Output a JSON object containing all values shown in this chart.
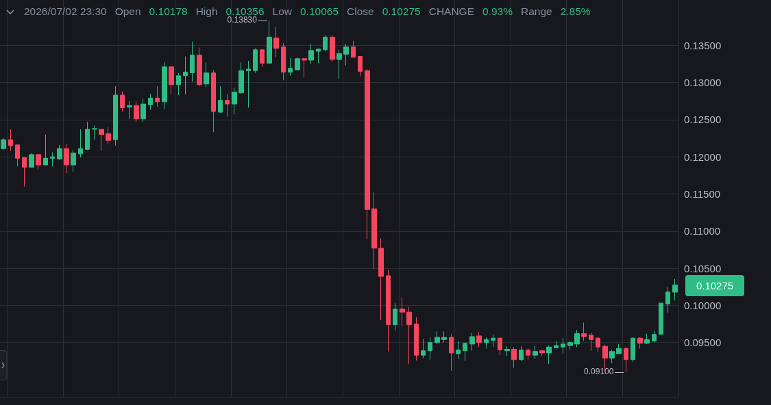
{
  "chart_data": {
    "type": "candlestick",
    "categories": [
      null,
      null,
      null,
      null,
      null,
      null,
      null,
      null,
      null,
      null,
      null,
      null,
      null,
      null,
      null,
      null,
      null,
      null,
      null,
      null,
      null,
      null,
      null,
      null,
      null,
      null,
      null,
      null,
      null,
      null,
      null,
      null,
      null,
      null,
      null,
      null,
      null,
      null,
      null,
      null,
      null,
      null,
      null,
      null,
      null,
      null,
      null,
      null,
      null,
      null,
      null,
      null,
      null,
      null,
      null,
      null,
      null,
      null,
      null,
      null,
      null,
      null,
      null,
      null,
      null,
      null,
      null,
      null,
      null,
      null,
      null,
      null,
      null,
      null,
      null,
      null,
      null,
      null,
      null,
      null,
      null,
      null,
      null,
      null,
      null,
      null,
      null,
      null,
      null,
      null,
      null,
      null,
      null,
      null,
      null,
      null,
      null
    ],
    "ohlc": [
      [
        0.1211,
        0.1225,
        0.1209,
        0.1223
      ],
      [
        0.1223,
        0.1237,
        0.1208,
        0.1215
      ],
      [
        0.1216,
        0.1216,
        0.1187,
        0.1198
      ],
      [
        0.1199,
        0.1199,
        0.116,
        0.1186
      ],
      [
        0.1186,
        0.1205,
        0.1186,
        0.1203
      ],
      [
        0.1203,
        0.1204,
        0.1183,
        0.1189
      ],
      [
        0.1189,
        0.123,
        0.1189,
        0.1198
      ],
      [
        0.1198,
        0.1206,
        0.1187,
        0.12
      ],
      [
        0.1197,
        0.1216,
        0.1196,
        0.1211
      ],
      [
        0.1211,
        0.1217,
        0.1178,
        0.1189
      ],
      [
        0.1189,
        0.1209,
        0.118,
        0.1205
      ],
      [
        0.1204,
        0.1237,
        0.1199,
        0.1211
      ],
      [
        0.121,
        0.1247,
        0.1209,
        0.1237
      ],
      [
        0.1237,
        0.1242,
        0.1223,
        0.1238
      ],
      [
        0.1237,
        0.1237,
        0.1208,
        0.123
      ],
      [
        0.1231,
        0.124,
        0.1217,
        0.1222
      ],
      [
        0.1223,
        0.1295,
        0.1215,
        0.1283
      ],
      [
        0.1283,
        0.1288,
        0.1261,
        0.1266
      ],
      [
        0.1267,
        0.1275,
        0.1251,
        0.1269
      ],
      [
        0.1269,
        0.1275,
        0.1247,
        0.1251
      ],
      [
        0.1251,
        0.1278,
        0.1247,
        0.1271
      ],
      [
        0.127,
        0.1285,
        0.1263,
        0.1279
      ],
      [
        0.1279,
        0.1295,
        0.1267,
        0.1274
      ],
      [
        0.1274,
        0.1327,
        0.1264,
        0.1321
      ],
      [
        0.1321,
        0.1322,
        0.1284,
        0.1297
      ],
      [
        0.1297,
        0.1313,
        0.1283,
        0.1309
      ],
      [
        0.1309,
        0.1335,
        0.1284,
        0.1314
      ],
      [
        0.1313,
        0.1355,
        0.1301,
        0.1337
      ],
      [
        0.1337,
        0.1347,
        0.1295,
        0.1297
      ],
      [
        0.1298,
        0.1327,
        0.1294,
        0.1313
      ],
      [
        0.1313,
        0.1317,
        0.1233,
        0.1261
      ],
      [
        0.126,
        0.1295,
        0.1259,
        0.1276
      ],
      [
        0.1276,
        0.1284,
        0.1254,
        0.1271
      ],
      [
        0.1271,
        0.1293,
        0.1257,
        0.1287
      ],
      [
        0.1286,
        0.1327,
        0.1285,
        0.1316
      ],
      [
        0.1316,
        0.1329,
        0.1266,
        0.1318
      ],
      [
        0.1316,
        0.1346,
        0.1313,
        0.1344
      ],
      [
        0.1344,
        0.1344,
        0.1321,
        0.1326
      ],
      [
        0.1326,
        0.1383,
        0.1326,
        0.1361
      ],
      [
        0.136,
        0.1375,
        0.1334,
        0.1346
      ],
      [
        0.1348,
        0.1353,
        0.1303,
        0.1314
      ],
      [
        0.1314,
        0.1333,
        0.1309,
        0.1319
      ],
      [
        0.1317,
        0.1334,
        0.1316,
        0.1332
      ],
      [
        0.1332,
        0.1333,
        0.1307,
        0.133
      ],
      [
        0.133,
        0.1352,
        0.1325,
        0.1343
      ],
      [
        0.1342,
        0.1345,
        0.1326,
        0.1345
      ],
      [
        0.1344,
        0.1363,
        0.1342,
        0.1361
      ],
      [
        0.1361,
        0.1363,
        0.1328,
        0.1331
      ],
      [
        0.1331,
        0.1344,
        0.1305,
        0.1339
      ],
      [
        0.1338,
        0.1352,
        0.1323,
        0.1348
      ],
      [
        0.1348,
        0.1356,
        0.1334,
        0.1334
      ],
      [
        0.1335,
        0.1335,
        0.1308,
        0.1315
      ],
      [
        0.1316,
        0.1318,
        0.1089,
        0.1129
      ],
      [
        0.113,
        0.1152,
        0.1049,
        0.1077
      ],
      [
        0.1077,
        0.109,
        0.098,
        0.1039
      ],
      [
        0.104,
        0.1048,
        0.0938,
        0.0974
      ],
      [
        0.0974,
        0.1003,
        0.0966,
        0.0995
      ],
      [
        0.0995,
        0.1011,
        0.0972,
        0.0991
      ],
      [
        0.0991,
        0.0998,
        0.0921,
        0.0974
      ],
      [
        0.0975,
        0.0984,
        0.0926,
        0.0933
      ],
      [
        0.0933,
        0.0955,
        0.0929,
        0.0939
      ],
      [
        0.0939,
        0.0957,
        0.0927,
        0.095
      ],
      [
        0.095,
        0.0965,
        0.0948,
        0.0957
      ],
      [
        0.0954,
        0.0965,
        0.095,
        0.0957
      ],
      [
        0.0957,
        0.0962,
        0.0912,
        0.0936
      ],
      [
        0.0935,
        0.0952,
        0.0928,
        0.094
      ],
      [
        0.0939,
        0.095,
        0.0925,
        0.0949
      ],
      [
        0.0948,
        0.0963,
        0.0939,
        0.0958
      ],
      [
        0.0959,
        0.0964,
        0.0944,
        0.095
      ],
      [
        0.095,
        0.0957,
        0.0942,
        0.0954
      ],
      [
        0.0953,
        0.0961,
        0.0944,
        0.0956
      ],
      [
        0.0956,
        0.0957,
        0.0933,
        0.094
      ],
      [
        0.0939,
        0.0945,
        0.0932,
        0.0941
      ],
      [
        0.0941,
        0.0944,
        0.0916,
        0.0927
      ],
      [
        0.0927,
        0.0945,
        0.0925,
        0.094
      ],
      [
        0.094,
        0.0942,
        0.0927,
        0.0933
      ],
      [
        0.0933,
        0.0946,
        0.0928,
        0.0938
      ],
      [
        0.0939,
        0.094,
        0.0932,
        0.0936
      ],
      [
        0.0936,
        0.0946,
        0.0921,
        0.0944
      ],
      [
        0.0943,
        0.0952,
        0.0942,
        0.0946
      ],
      [
        0.0944,
        0.0956,
        0.0935,
        0.0948
      ],
      [
        0.0946,
        0.0952,
        0.094,
        0.095
      ],
      [
        0.0948,
        0.0967,
        0.0944,
        0.0962
      ],
      [
        0.0962,
        0.0977,
        0.0952,
        0.0958
      ],
      [
        0.096,
        0.0963,
        0.0939,
        0.0954
      ],
      [
        0.0956,
        0.0957,
        0.0938,
        0.0944
      ],
      [
        0.0945,
        0.0947,
        0.0912,
        0.0929
      ],
      [
        0.0929,
        0.094,
        0.0922,
        0.0938
      ],
      [
        0.0935,
        0.0948,
        0.0935,
        0.0942
      ],
      [
        0.0942,
        0.0944,
        0.091,
        0.0927
      ],
      [
        0.0927,
        0.0957,
        0.0924,
        0.0956
      ],
      [
        0.0956,
        0.0957,
        0.0942,
        0.0949
      ],
      [
        0.0949,
        0.0962,
        0.0948,
        0.0954
      ],
      [
        0.0952,
        0.0966,
        0.095,
        0.0961
      ],
      [
        0.0961,
        0.1004,
        0.0961,
        0.1003
      ],
      [
        0.1002,
        0.1025,
        0.099,
        0.1018
      ],
      [
        0.10178,
        0.10356,
        0.10065,
        0.10275
      ]
    ],
    "colors": [
      "#2ebd85",
      "#f6465d",
      "#f6465d",
      "#f6465d",
      "#2ebd85",
      "#f6465d",
      "#2ebd85",
      "#2ebd85",
      "#2ebd85",
      "#f6465d",
      "#2ebd85",
      "#2ebd85",
      "#2ebd85",
      "#2ebd85",
      "#f6465d",
      "#f6465d",
      "#2ebd85",
      "#f6465d",
      "#2ebd85",
      "#f6465d",
      "#2ebd85",
      "#2ebd85",
      "#f6465d",
      "#2ebd85",
      "#f6465d",
      "#2ebd85",
      "#2ebd85",
      "#2ebd85",
      "#f6465d",
      "#2ebd85",
      "#f6465d",
      "#2ebd85",
      "#f6465d",
      "#2ebd85",
      "#2ebd85",
      "#2ebd85",
      "#2ebd85",
      "#f6465d",
      "#2ebd85",
      "#f6465d",
      "#f6465d",
      "#2ebd85",
      "#2ebd85",
      "#f6465d",
      "#2ebd85",
      "#2ebd85",
      "#2ebd85",
      "#f6465d",
      "#2ebd85",
      "#2ebd85",
      "#f6465d",
      "#f6465d",
      "#f6465d",
      "#f6465d",
      "#f6465d",
      "#f6465d",
      "#2ebd85",
      "#f6465d",
      "#f6465d",
      "#f6465d",
      "#2ebd85",
      "#2ebd85",
      "#2ebd85",
      "#2ebd85",
      "#f6465d",
      "#2ebd85",
      "#2ebd85",
      "#2ebd85",
      "#f6465d",
      "#2ebd85",
      "#2ebd85",
      "#f6465d",
      "#2ebd85",
      "#f6465d",
      "#2ebd85",
      "#f6465d",
      "#2ebd85",
      "#f6465d",
      "#2ebd85",
      "#2ebd85",
      "#2ebd85",
      "#2ebd85",
      "#2ebd85",
      "#f6465d",
      "#f6465d",
      "#f6465d",
      "#f6465d",
      "#2ebd85",
      "#2ebd85",
      "#f6465d",
      "#2ebd85",
      "#f6465d",
      "#2ebd85",
      "#2ebd85",
      "#2ebd85",
      "#2ebd85",
      "#2ebd85"
    ],
    "ylim": [
      0.0877,
      0.1411
    ],
    "yticks": [
      {
        "value": 0.095,
        "label": "0.09500"
      },
      {
        "value": 0.1,
        "label": "0.10000"
      },
      {
        "value": 0.105,
        "label": "0.10500"
      },
      {
        "value": 0.11,
        "label": "0.11000"
      },
      {
        "value": 0.115,
        "label": "0.11500"
      },
      {
        "value": 0.12,
        "label": "0.12000"
      },
      {
        "value": 0.125,
        "label": "0.12500"
      },
      {
        "value": 0.13,
        "label": "0.13000"
      },
      {
        "value": 0.135,
        "label": "0.13500"
      }
    ],
    "tick_labels": "y",
    "grid": true,
    "annotations": [
      "2026/07/02 23:30",
      "Open",
      "0.10178",
      "High",
      "0.10356",
      "Low",
      "0.10065",
      "Close",
      "0.10275",
      "CHANGE",
      "0.93%",
      "Range",
      "2.85%",
      "0.13830",
      "0.09100",
      "0.10275"
    ]
  }
}
